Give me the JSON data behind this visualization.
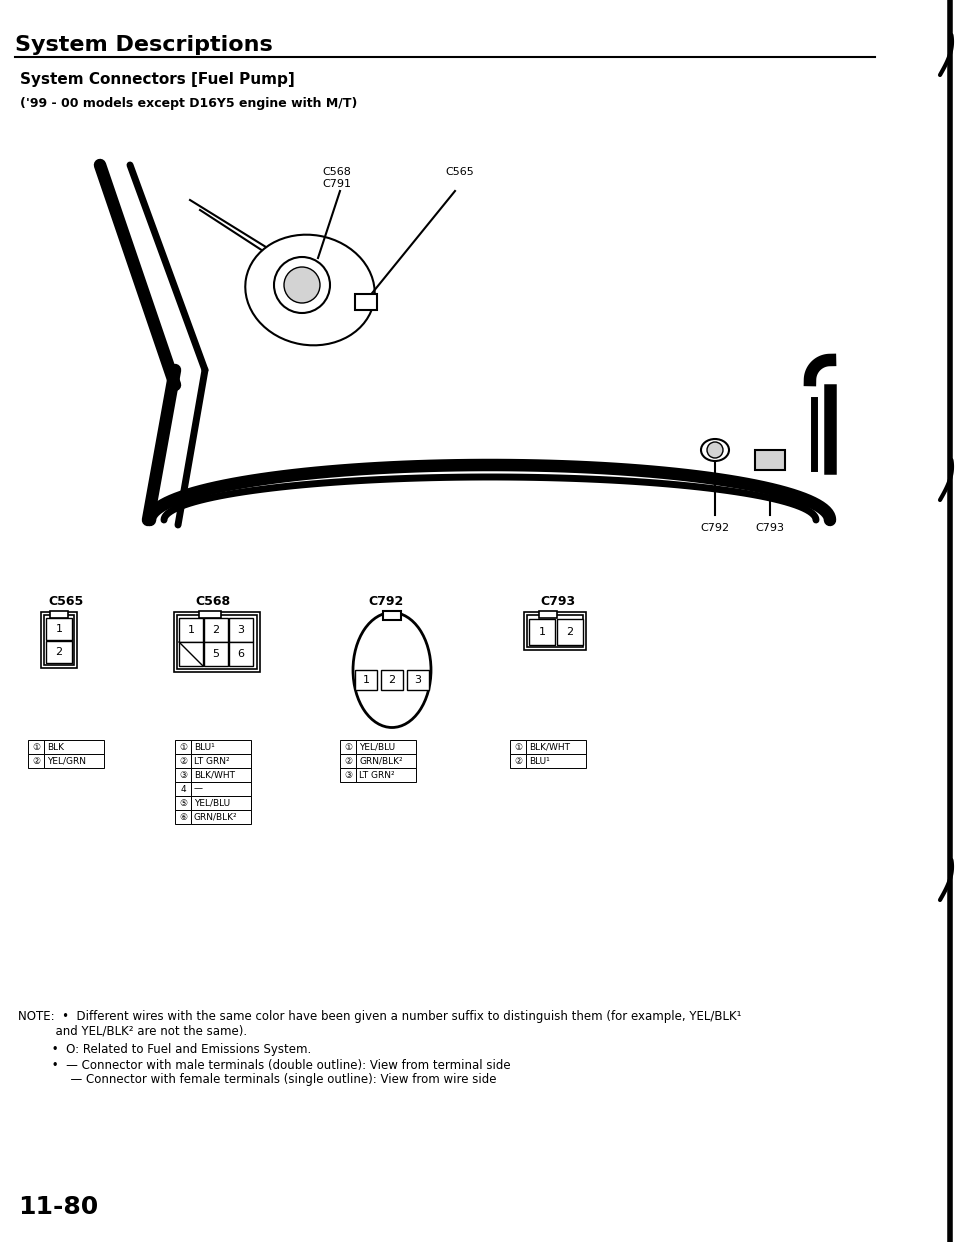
{
  "title": "System Descriptions",
  "subtitle": "System Connectors [Fuel Pump]",
  "subtitle2": "('99 - 00 models except D16Y5 engine with M/T)",
  "bg_color": "#ffffff",
  "text_color": "#000000",
  "page_number": "11-80",
  "connector_labels": [
    "C565",
    "C568",
    "C792",
    "C793"
  ],
  "wire_tables": {
    "C565": [
      [
        "①",
        "BLK"
      ],
      [
        "②",
        "YEL/GRN"
      ]
    ],
    "C568": [
      [
        "①",
        "BLU¹"
      ],
      [
        "②",
        "LT GRN²"
      ],
      [
        "③",
        "BLK/WHT"
      ],
      [
        "4",
        "—"
      ],
      [
        "⑤",
        "YEL/BLU"
      ],
      [
        "⑥",
        "GRN/BLK²"
      ]
    ],
    "C792": [
      [
        "①",
        "YEL/BLU"
      ],
      [
        "②",
        "GRN/BLK²"
      ],
      [
        "③",
        "LT GRN²"
      ]
    ],
    "C793": [
      [
        "①",
        "BLK/WHT"
      ],
      [
        "②",
        "BLU¹"
      ]
    ]
  }
}
